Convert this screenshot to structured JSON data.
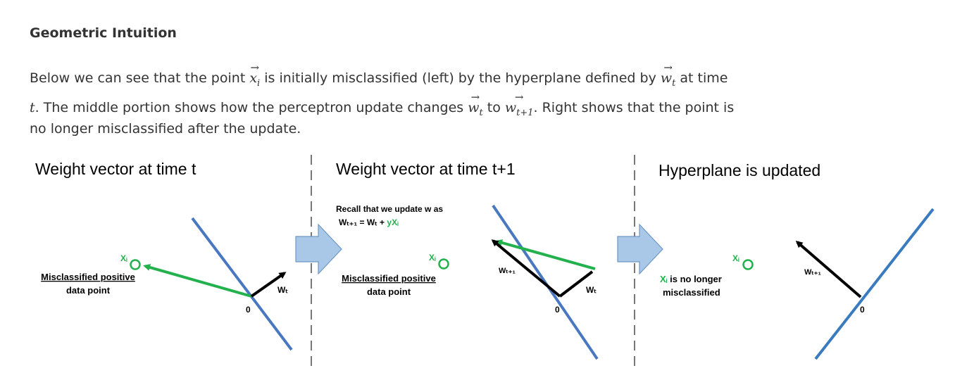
{
  "heading": "Geometric Intuition",
  "paragraph": {
    "p1": "Below we can see that the point ",
    "p2": " is initially misclassified (left) by the hyperplane defined by ",
    "p3": " at time",
    "p4": ". The middle portion shows how the perceptron update changes ",
    "p5": " to ",
    "p6": ". Right shows that the point is",
    "p7": "no longer misclassified after the update.",
    "math_x": "x",
    "math_x_sub": "i",
    "math_w": "w",
    "math_w_sub": "t",
    "math_w2_sub": "t+1",
    "math_t": "t",
    "arrow": "→"
  },
  "figure": {
    "panels": [
      {
        "title": "Weight vector at time t",
        "point_label": "Xᵢ",
        "note_line1": "Misclassified positive",
        "note_line2": "data point",
        "weight_label": "Wₜ",
        "origin_label": "0"
      },
      {
        "title": "Weight vector at time t+1",
        "recall_line1": "Recall that we update w as",
        "recall_eq": "Wₜ₊₁ = Wₜ + ",
        "recall_term": "yXᵢ",
        "point_label": "Xᵢ",
        "note_line1": "Misclassified positive",
        "note_line2": "data point",
        "new_weight_label": "Wₜ₊₁",
        "weight_label": "Wₜ",
        "origin_label": "0"
      },
      {
        "title": "Hyperplane is updated",
        "point_label": "Xᵢ",
        "note_xi": "Xᵢ",
        "note_line1_rest": " is no longer",
        "note_line2": "misclassified",
        "weight_label": "Wₜ₊₁",
        "origin_label": "0"
      }
    ],
    "colors": {
      "hyperplane": "#4a78c0",
      "hyperplane_updated": "#3a7bbf",
      "update_vector": "#22b14c",
      "weight": "#000000",
      "arrow_fill": "#a9c8e8",
      "arrow_stroke": "#6d98c6",
      "divider": "#777777"
    }
  }
}
